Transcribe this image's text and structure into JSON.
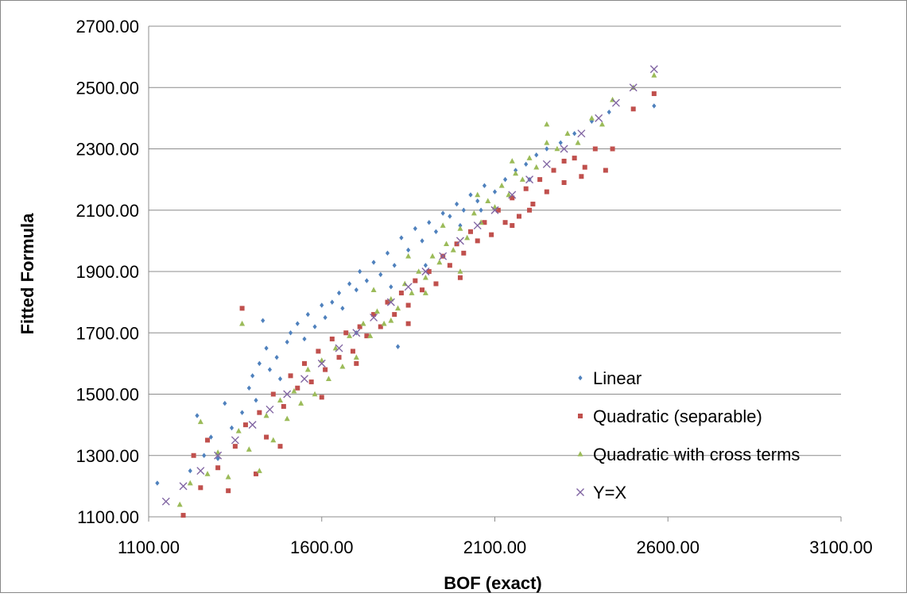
{
  "chart_data": {
    "type": "scatter",
    "xlabel": "BOF (exact)",
    "ylabel": "Fitted Formula",
    "xlim": [
      1100,
      3100
    ],
    "ylim": [
      1100,
      2700
    ],
    "x_ticks": [
      "1100.00",
      "1600.00",
      "2100.00",
      "2600.00",
      "3100.00"
    ],
    "y_ticks": [
      "1100.00",
      "1300.00",
      "1500.00",
      "1700.00",
      "1900.00",
      "2100.00",
      "2300.00",
      "2500.00",
      "2700.00"
    ],
    "grid": "horizontal",
    "legend_position": "bottom-right inside plot",
    "series": [
      {
        "name": "Linear",
        "marker": "diamond",
        "color": "#4f81bd",
        "points": [
          [
            1125,
            1210
          ],
          [
            1220,
            1250
          ],
          [
            1240,
            1430
          ],
          [
            1260,
            1300
          ],
          [
            1280,
            1360
          ],
          [
            1300,
            1290
          ],
          [
            1320,
            1470
          ],
          [
            1340,
            1390
          ],
          [
            1370,
            1440
          ],
          [
            1390,
            1520
          ],
          [
            1400,
            1560
          ],
          [
            1410,
            1480
          ],
          [
            1420,
            1600
          ],
          [
            1430,
            1740
          ],
          [
            1440,
            1650
          ],
          [
            1450,
            1580
          ],
          [
            1470,
            1620
          ],
          [
            1480,
            1550
          ],
          [
            1500,
            1670
          ],
          [
            1510,
            1700
          ],
          [
            1530,
            1730
          ],
          [
            1550,
            1680
          ],
          [
            1560,
            1760
          ],
          [
            1580,
            1720
          ],
          [
            1600,
            1790
          ],
          [
            1610,
            1750
          ],
          [
            1630,
            1800
          ],
          [
            1650,
            1830
          ],
          [
            1660,
            1780
          ],
          [
            1680,
            1860
          ],
          [
            1700,
            1840
          ],
          [
            1710,
            1900
          ],
          [
            1730,
            1870
          ],
          [
            1750,
            1930
          ],
          [
            1770,
            1890
          ],
          [
            1790,
            1960
          ],
          [
            1810,
            1920
          ],
          [
            1830,
            2010
          ],
          [
            1850,
            1970
          ],
          [
            1870,
            2040
          ],
          [
            1890,
            2000
          ],
          [
            1910,
            2060
          ],
          [
            1930,
            2030
          ],
          [
            1950,
            2090
          ],
          [
            1970,
            2080
          ],
          [
            1990,
            2120
          ],
          [
            2010,
            2100
          ],
          [
            2030,
            2150
          ],
          [
            2050,
            2130
          ],
          [
            2070,
            2180
          ],
          [
            2100,
            2160
          ],
          [
            2130,
            2200
          ],
          [
            2160,
            2230
          ],
          [
            2190,
            2250
          ],
          [
            2220,
            2280
          ],
          [
            2250,
            2300
          ],
          [
            2290,
            2320
          ],
          [
            2330,
            2350
          ],
          [
            2380,
            2390
          ],
          [
            2430,
            2420
          ],
          [
            2560,
            2440
          ],
          [
            1820,
            1655
          ],
          [
            1900,
            1920
          ],
          [
            2000,
            2050
          ],
          [
            2060,
            2100
          ],
          [
            1700,
            1700
          ],
          [
            1800,
            1850
          ],
          [
            2200,
            2200
          ],
          [
            2300,
            2260
          ]
        ]
      },
      {
        "name": "Quadratic (separable)",
        "marker": "square",
        "color": "#c0504d",
        "points": [
          [
            1200,
            1105
          ],
          [
            1230,
            1300
          ],
          [
            1250,
            1195
          ],
          [
            1270,
            1350
          ],
          [
            1300,
            1260
          ],
          [
            1330,
            1185
          ],
          [
            1350,
            1330
          ],
          [
            1370,
            1780
          ],
          [
            1380,
            1400
          ],
          [
            1410,
            1240
          ],
          [
            1420,
            1440
          ],
          [
            1440,
            1360
          ],
          [
            1460,
            1500
          ],
          [
            1480,
            1330
          ],
          [
            1490,
            1460
          ],
          [
            1510,
            1560
          ],
          [
            1530,
            1520
          ],
          [
            1550,
            1600
          ],
          [
            1570,
            1540
          ],
          [
            1590,
            1640
          ],
          [
            1610,
            1580
          ],
          [
            1630,
            1680
          ],
          [
            1650,
            1620
          ],
          [
            1670,
            1700
          ],
          [
            1690,
            1640
          ],
          [
            1710,
            1720
          ],
          [
            1730,
            1690
          ],
          [
            1750,
            1760
          ],
          [
            1770,
            1720
          ],
          [
            1790,
            1800
          ],
          [
            1810,
            1760
          ],
          [
            1830,
            1830
          ],
          [
            1850,
            1790
          ],
          [
            1870,
            1870
          ],
          [
            1890,
            1840
          ],
          [
            1910,
            1900
          ],
          [
            1930,
            1860
          ],
          [
            1950,
            1950
          ],
          [
            1970,
            1920
          ],
          [
            1990,
            1990
          ],
          [
            2010,
            1960
          ],
          [
            2030,
            2030
          ],
          [
            2050,
            2000
          ],
          [
            2070,
            2060
          ],
          [
            2090,
            2020
          ],
          [
            2110,
            2100
          ],
          [
            2130,
            2060
          ],
          [
            2150,
            2140
          ],
          [
            2170,
            2080
          ],
          [
            2190,
            2170
          ],
          [
            2210,
            2120
          ],
          [
            2230,
            2200
          ],
          [
            2250,
            2160
          ],
          [
            2270,
            2230
          ],
          [
            2300,
            2190
          ],
          [
            2330,
            2270
          ],
          [
            2360,
            2240
          ],
          [
            2390,
            2300
          ],
          [
            2420,
            2230
          ],
          [
            2440,
            2300
          ],
          [
            2500,
            2430
          ],
          [
            2560,
            2480
          ],
          [
            1600,
            1490
          ],
          [
            1700,
            1600
          ],
          [
            1850,
            1730
          ],
          [
            2000,
            1880
          ],
          [
            2150,
            2050
          ],
          [
            2200,
            2100
          ],
          [
            2300,
            2260
          ],
          [
            2350,
            2210
          ]
        ]
      },
      {
        "name": "Quadratic with cross terms",
        "marker": "triangle",
        "color": "#9bbb59",
        "points": [
          [
            1190,
            1140
          ],
          [
            1220,
            1210
          ],
          [
            1250,
            1410
          ],
          [
            1270,
            1240
          ],
          [
            1300,
            1310
          ],
          [
            1330,
            1230
          ],
          [
            1360,
            1380
          ],
          [
            1370,
            1730
          ],
          [
            1390,
            1320
          ],
          [
            1420,
            1250
          ],
          [
            1440,
            1430
          ],
          [
            1460,
            1350
          ],
          [
            1480,
            1480
          ],
          [
            1500,
            1420
          ],
          [
            1520,
            1510
          ],
          [
            1540,
            1470
          ],
          [
            1560,
            1580
          ],
          [
            1580,
            1500
          ],
          [
            1600,
            1610
          ],
          [
            1620,
            1550
          ],
          [
            1640,
            1650
          ],
          [
            1660,
            1590
          ],
          [
            1680,
            1690
          ],
          [
            1700,
            1620
          ],
          [
            1720,
            1730
          ],
          [
            1740,
            1690
          ],
          [
            1760,
            1770
          ],
          [
            1780,
            1730
          ],
          [
            1800,
            1810
          ],
          [
            1820,
            1780
          ],
          [
            1840,
            1860
          ],
          [
            1860,
            1830
          ],
          [
            1880,
            1900
          ],
          [
            1900,
            1880
          ],
          [
            1920,
            1950
          ],
          [
            1940,
            1930
          ],
          [
            1960,
            1990
          ],
          [
            1980,
            1970
          ],
          [
            2000,
            2040
          ],
          [
            2020,
            2010
          ],
          [
            2040,
            2090
          ],
          [
            2060,
            2060
          ],
          [
            2080,
            2130
          ],
          [
            2100,
            2110
          ],
          [
            2120,
            2180
          ],
          [
            2140,
            2150
          ],
          [
            2160,
            2220
          ],
          [
            2180,
            2200
          ],
          [
            2200,
            2270
          ],
          [
            2220,
            2240
          ],
          [
            2250,
            2320
          ],
          [
            2280,
            2300
          ],
          [
            2310,
            2350
          ],
          [
            2340,
            2320
          ],
          [
            2380,
            2400
          ],
          [
            2410,
            2380
          ],
          [
            2440,
            2460
          ],
          [
            2500,
            2500
          ],
          [
            2560,
            2540
          ],
          [
            1750,
            1840
          ],
          [
            1850,
            1950
          ],
          [
            1950,
            2050
          ],
          [
            2050,
            2150
          ],
          [
            2150,
            2260
          ],
          [
            2250,
            2380
          ],
          [
            1800,
            1740
          ],
          [
            1900,
            1830
          ],
          [
            2000,
            1900
          ]
        ]
      },
      {
        "name": "Y=X",
        "marker": "x",
        "color": "#8064a2",
        "points": [
          [
            1150,
            1150
          ],
          [
            1200,
            1200
          ],
          [
            1250,
            1250
          ],
          [
            1300,
            1300
          ],
          [
            1350,
            1350
          ],
          [
            1400,
            1400
          ],
          [
            1450,
            1450
          ],
          [
            1500,
            1500
          ],
          [
            1550,
            1550
          ],
          [
            1600,
            1600
          ],
          [
            1650,
            1650
          ],
          [
            1700,
            1700
          ],
          [
            1750,
            1750
          ],
          [
            1800,
            1800
          ],
          [
            1850,
            1850
          ],
          [
            1900,
            1900
          ],
          [
            1950,
            1950
          ],
          [
            2000,
            2000
          ],
          [
            2050,
            2050
          ],
          [
            2100,
            2100
          ],
          [
            2150,
            2150
          ],
          [
            2200,
            2200
          ],
          [
            2250,
            2250
          ],
          [
            2300,
            2300
          ],
          [
            2350,
            2350
          ],
          [
            2400,
            2400
          ],
          [
            2450,
            2450
          ],
          [
            2500,
            2500
          ],
          [
            2560,
            2560
          ]
        ]
      }
    ]
  }
}
